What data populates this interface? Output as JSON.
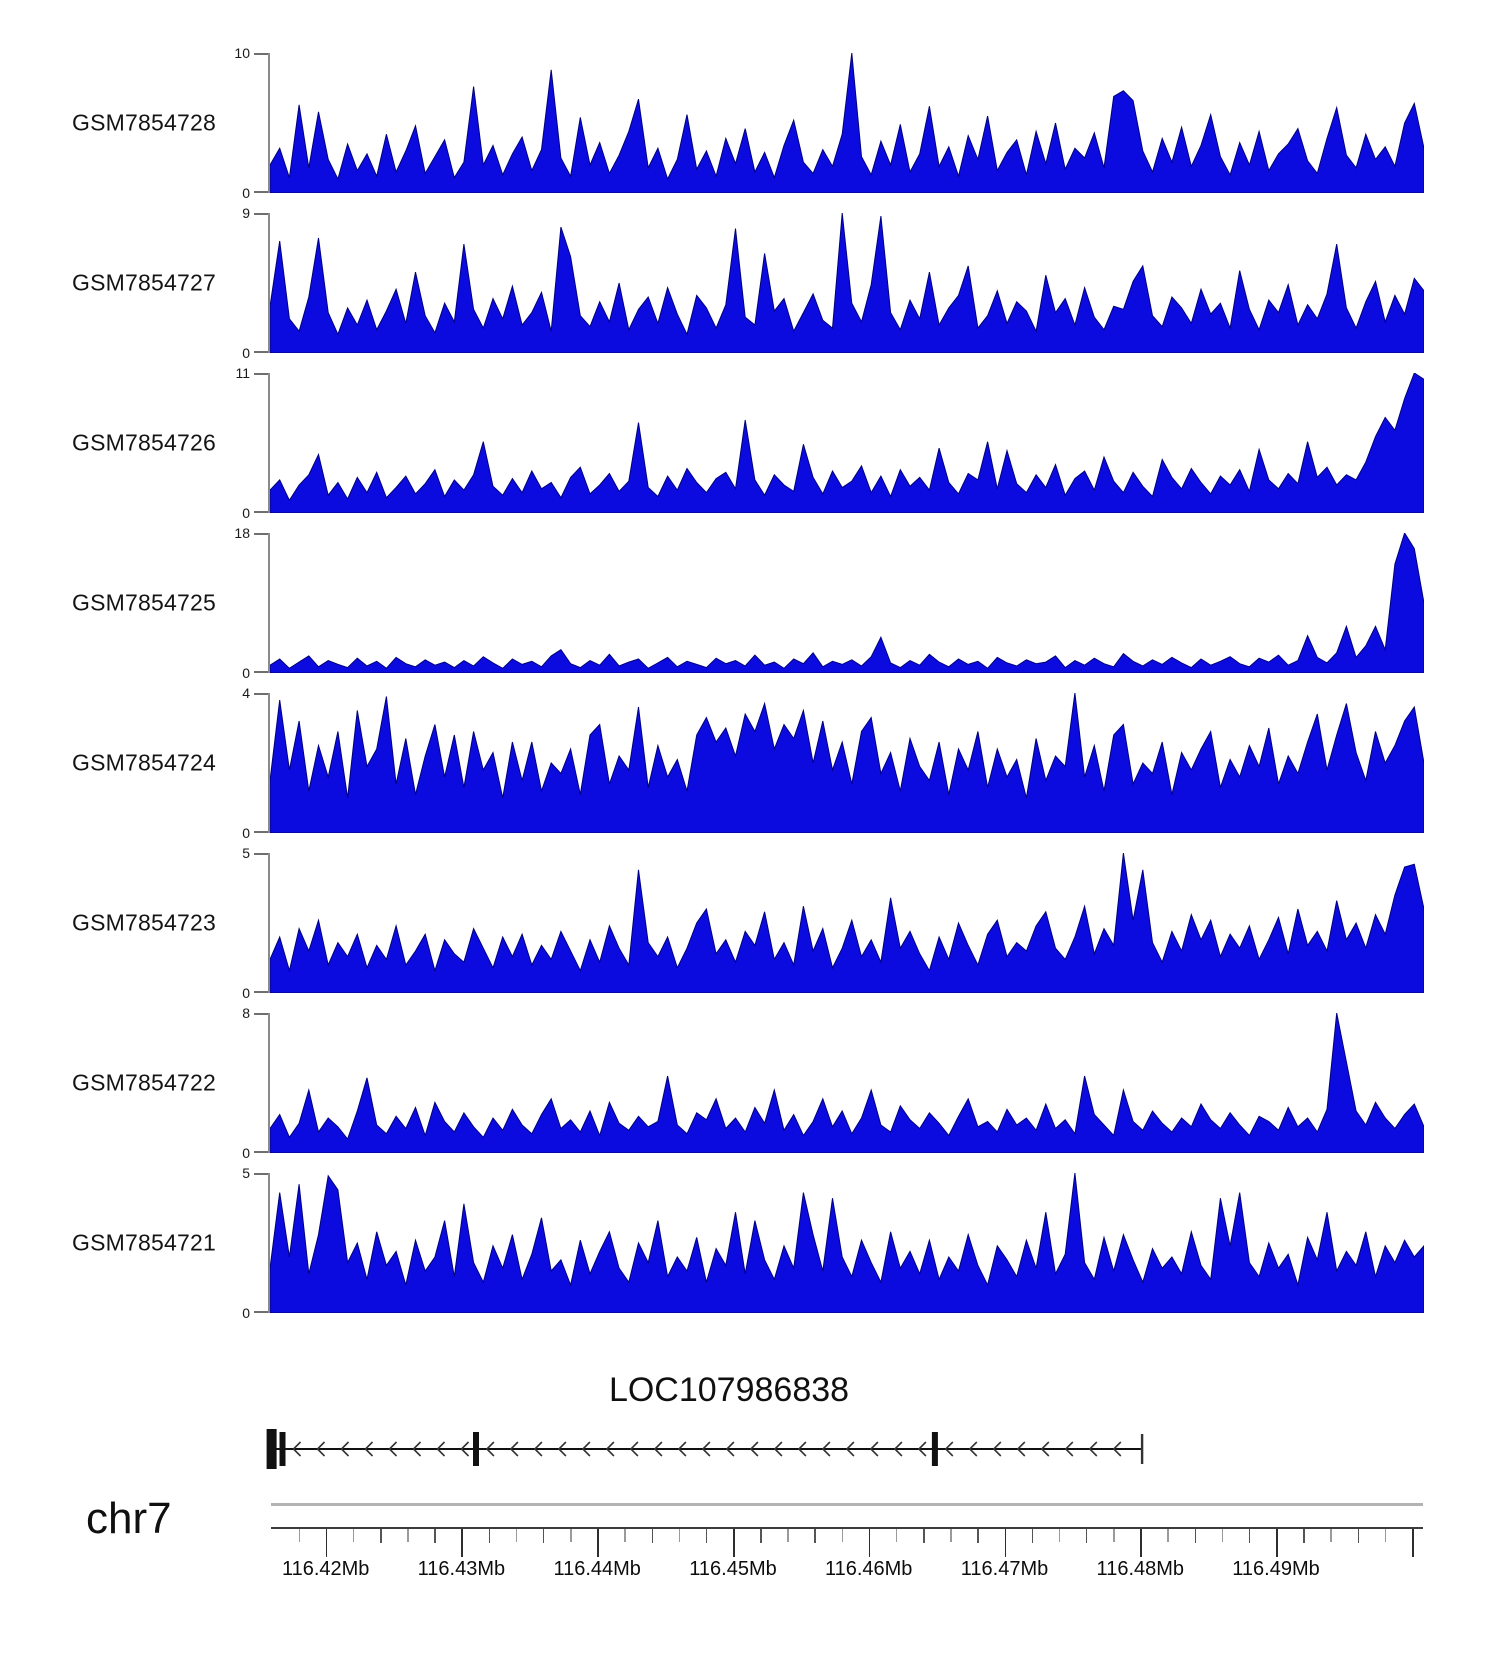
{
  "figure": {
    "kind": "genome-browser-coverage-figure",
    "background": "#ffffff"
  },
  "colors": {
    "signal_fill": "#0b0be0",
    "signal_stroke": "#00007d",
    "y_axis_line": "#8a8a8a",
    "genome_axis_line": "#3c3c3c",
    "ideogram_line": "#b3b3b3",
    "gene_model": "#111111",
    "text": "#101010"
  },
  "chart_data": {
    "type": "area",
    "title": "",
    "legend": "none",
    "grid": false,
    "genome_axis": {
      "chromosome_label": "chr7",
      "xlim_mb": [
        116.4159,
        116.5009
      ],
      "minor_tick_step_mb": 0.002,
      "major_tick_values_mb": [
        116.42,
        116.43,
        116.44,
        116.45,
        116.46,
        116.47,
        116.48,
        116.49
      ],
      "tick_labels": [
        "116.42Mb",
        "116.43Mb",
        "116.44Mb",
        "116.45Mb",
        "116.46Mb",
        "116.47Mb",
        "116.48Mb",
        "116.49Mb"
      ]
    },
    "x_sampling": {
      "x_start_mb": 116.4159,
      "x_step_mb": 0.000714,
      "points_per_track": 120
    },
    "tracks": [
      {
        "label": "GSM7854728",
        "ylim": [
          0,
          10
        ],
        "ymax_label": "10",
        "ymin_label": "0",
        "values": [
          2.0,
          3.2,
          1.1,
          6.3,
          1.8,
          5.8,
          2.4,
          1.0,
          3.5,
          1.6,
          2.8,
          1.2,
          4.2,
          1.5,
          3.0,
          4.8,
          1.4,
          2.6,
          3.8,
          1.1,
          2.2,
          7.6,
          2.0,
          3.4,
          1.3,
          2.8,
          4.0,
          1.6,
          3.1,
          8.8,
          2.5,
          1.2,
          5.4,
          2.0,
          3.6,
          1.4,
          2.7,
          4.4,
          6.7,
          1.8,
          3.2,
          1.0,
          2.4,
          5.6,
          1.7,
          3.0,
          1.2,
          3.9,
          2.1,
          4.6,
          1.5,
          2.9,
          1.1,
          3.4,
          5.2,
          2.2,
          1.4,
          3.1,
          1.9,
          4.2,
          10.0,
          2.6,
          1.3,
          3.7,
          2.0,
          4.9,
          1.5,
          2.8,
          6.2,
          1.9,
          3.3,
          1.2,
          4.1,
          2.4,
          5.5,
          1.6,
          2.9,
          3.8,
          1.3,
          4.4,
          2.1,
          5.0,
          1.7,
          3.2,
          2.5,
          4.3,
          1.8,
          6.9,
          7.3,
          6.6,
          3.0,
          1.5,
          3.9,
          2.2,
          4.7,
          1.9,
          3.4,
          5.6,
          2.6,
          1.3,
          3.6,
          2.0,
          4.4,
          1.6,
          2.8,
          3.5,
          4.6,
          2.3,
          1.4,
          3.9,
          6.1,
          2.7,
          1.8,
          4.2,
          2.4,
          3.3,
          1.9,
          5.0,
          6.4,
          3.2
        ]
      },
      {
        "label": "GSM7854727",
        "ylim": [
          0,
          9
        ],
        "ymax_label": "9",
        "ymin_label": "0",
        "values": [
          3.0,
          7.2,
          2.2,
          1.4,
          3.6,
          7.4,
          2.6,
          1.2,
          2.9,
          1.8,
          3.4,
          1.5,
          2.7,
          4.1,
          1.9,
          5.2,
          2.4,
          1.3,
          3.2,
          2.0,
          7.0,
          2.8,
          1.6,
          3.5,
          2.2,
          4.3,
          1.8,
          2.6,
          3.9,
          1.4,
          8.1,
          6.2,
          2.4,
          1.7,
          3.3,
          2.0,
          4.5,
          1.5,
          2.8,
          3.6,
          1.9,
          4.2,
          2.5,
          1.2,
          3.7,
          2.9,
          1.6,
          3.1,
          8.0,
          2.3,
          1.8,
          6.4,
          2.7,
          3.5,
          1.4,
          2.6,
          3.8,
          2.1,
          1.6,
          9.0,
          3.2,
          2.0,
          4.4,
          8.8,
          2.6,
          1.5,
          3.4,
          2.2,
          5.2,
          1.8,
          2.9,
          3.7,
          5.6,
          1.6,
          2.4,
          4.0,
          1.9,
          3.3,
          2.7,
          1.4,
          5.0,
          2.6,
          3.5,
          1.8,
          4.2,
          2.3,
          1.5,
          3.0,
          2.8,
          4.6,
          5.6,
          2.4,
          1.7,
          3.6,
          2.9,
          1.9,
          4.1,
          2.5,
          3.2,
          1.6,
          5.3,
          2.8,
          1.5,
          3.4,
          2.6,
          4.4,
          1.8,
          3.1,
          2.2,
          3.8,
          7.0,
          2.9,
          1.6,
          3.3,
          4.6,
          2.0,
          3.7,
          2.5,
          4.8,
          4.0
        ]
      },
      {
        "label": "GSM7854726",
        "ylim": [
          0,
          11
        ],
        "ymax_label": "11",
        "ymin_label": "0",
        "values": [
          1.8,
          2.6,
          1.0,
          2.2,
          3.0,
          4.6,
          1.4,
          2.4,
          1.1,
          2.8,
          1.6,
          3.2,
          1.2,
          2.0,
          2.9,
          1.5,
          2.3,
          3.4,
          1.3,
          2.6,
          1.8,
          3.0,
          5.6,
          2.1,
          1.4,
          2.7,
          1.6,
          3.3,
          1.9,
          2.4,
          1.2,
          2.8,
          3.6,
          1.5,
          2.2,
          3.1,
          1.7,
          2.5,
          7.1,
          2.0,
          1.3,
          2.9,
          1.8,
          3.5,
          2.4,
          1.6,
          2.7,
          3.2,
          1.9,
          7.3,
          2.6,
          1.4,
          3.0,
          2.2,
          1.7,
          5.4,
          2.8,
          1.5,
          3.3,
          2.0,
          2.5,
          3.7,
          1.6,
          2.9,
          1.3,
          3.4,
          2.1,
          2.8,
          1.8,
          5.1,
          2.4,
          1.5,
          3.1,
          2.6,
          5.6,
          1.9,
          4.9,
          2.3,
          1.6,
          3.0,
          2.0,
          3.8,
          1.4,
          2.7,
          3.3,
          1.8,
          4.4,
          2.5,
          1.6,
          3.2,
          2.1,
          1.3,
          4.2,
          2.8,
          1.9,
          3.5,
          2.4,
          1.5,
          2.9,
          2.2,
          3.4,
          1.7,
          5.0,
          2.6,
          1.9,
          3.1,
          2.3,
          5.6,
          2.8,
          3.6,
          2.2,
          3.0,
          2.6,
          4.0,
          6.0,
          7.5,
          6.5,
          9.0,
          11.0,
          10.5
        ]
      },
      {
        "label": "GSM7854725",
        "ylim": [
          0,
          18
        ],
        "ymax_label": "18",
        "ymin_label": "0",
        "values": [
          1.0,
          1.8,
          0.6,
          1.4,
          2.2,
          0.8,
          1.6,
          1.1,
          0.7,
          1.9,
          0.9,
          1.5,
          0.6,
          2.0,
          1.2,
          0.8,
          1.7,
          1.0,
          1.4,
          0.7,
          1.6,
          0.9,
          2.1,
          1.3,
          0.6,
          1.8,
          1.1,
          1.5,
          0.8,
          2.2,
          3.0,
          1.2,
          0.7,
          1.6,
          1.0,
          2.4,
          0.9,
          1.4,
          1.8,
          0.6,
          1.3,
          2.0,
          0.8,
          1.5,
          1.1,
          0.7,
          1.9,
          1.2,
          1.6,
          0.9,
          2.3,
          1.0,
          1.4,
          0.6,
          1.8,
          1.2,
          2.6,
          0.8,
          1.5,
          1.1,
          1.7,
          0.9,
          2.1,
          4.6,
          1.3,
          0.7,
          1.6,
          1.0,
          2.4,
          1.4,
          0.8,
          1.8,
          1.1,
          1.5,
          0.6,
          2.0,
          1.3,
          0.9,
          1.7,
          1.2,
          1.4,
          2.2,
          0.7,
          1.6,
          1.0,
          1.9,
          1.2,
          0.8,
          2.5,
          1.5,
          0.9,
          1.7,
          1.1,
          2.0,
          1.3,
          0.7,
          1.8,
          1.0,
          1.5,
          2.1,
          1.2,
          0.8,
          1.9,
          1.4,
          2.3,
          1.0,
          1.6,
          4.8,
          2.0,
          1.3,
          2.6,
          6.0,
          2.0,
          3.5,
          6.0,
          3.0,
          14.0,
          18.0,
          16.0,
          9.0
        ]
      },
      {
        "label": "GSM7854724",
        "ylim": [
          0,
          4
        ],
        "ymax_label": "4",
        "ymin_label": "0",
        "values": [
          1.5,
          3.8,
          1.8,
          3.2,
          1.2,
          2.5,
          1.6,
          2.9,
          1.0,
          3.5,
          1.9,
          2.4,
          3.9,
          1.4,
          2.7,
          1.1,
          2.2,
          3.1,
          1.6,
          2.8,
          1.3,
          2.9,
          1.8,
          2.3,
          1.0,
          2.6,
          1.5,
          2.6,
          1.2,
          2.0,
          1.7,
          2.4,
          1.1,
          2.8,
          3.1,
          1.4,
          2.2,
          1.8,
          3.6,
          1.3,
          2.5,
          1.6,
          2.1,
          1.2,
          2.8,
          3.3,
          2.6,
          3.0,
          2.2,
          3.4,
          2.9,
          3.7,
          2.4,
          3.1,
          2.7,
          3.5,
          2.0,
          3.2,
          1.8,
          2.6,
          1.4,
          2.9,
          3.3,
          1.7,
          2.3,
          1.2,
          2.7,
          1.9,
          1.5,
          2.6,
          1.1,
          2.4,
          1.8,
          2.9,
          1.3,
          2.4,
          1.6,
          2.1,
          1.0,
          2.7,
          1.5,
          2.2,
          1.9,
          4.0,
          1.6,
          2.5,
          1.2,
          2.8,
          3.1,
          1.4,
          2.0,
          1.7,
          2.6,
          1.1,
          2.3,
          1.8,
          2.4,
          2.9,
          1.3,
          2.1,
          1.6,
          2.5,
          1.9,
          3.0,
          1.4,
          2.2,
          1.7,
          2.6,
          3.4,
          1.8,
          2.8,
          3.7,
          2.3,
          1.5,
          2.9,
          2.0,
          2.5,
          3.2,
          3.6,
          2.0
        ]
      },
      {
        "label": "GSM7854723",
        "ylim": [
          0,
          5
        ],
        "ymax_label": "5",
        "ymin_label": "0",
        "values": [
          1.2,
          2.0,
          0.8,
          2.3,
          1.5,
          2.6,
          1.0,
          1.8,
          1.3,
          2.1,
          0.9,
          1.7,
          1.2,
          2.4,
          1.0,
          1.5,
          2.1,
          0.8,
          1.9,
          1.4,
          1.1,
          2.3,
          1.6,
          0.9,
          2.0,
          1.3,
          2.1,
          1.0,
          1.7,
          1.2,
          2.2,
          1.5,
          0.8,
          1.9,
          1.1,
          2.4,
          1.6,
          1.0,
          4.4,
          1.8,
          1.3,
          2.0,
          0.9,
          1.6,
          2.5,
          3.0,
          1.4,
          1.9,
          1.1,
          2.2,
          1.7,
          2.9,
          1.2,
          1.8,
          1.0,
          3.1,
          1.5,
          2.3,
          0.9,
          1.6,
          2.6,
          1.3,
          1.9,
          1.1,
          3.4,
          1.6,
          2.2,
          1.4,
          0.8,
          2.0,
          1.2,
          2.5,
          1.7,
          1.0,
          2.1,
          2.6,
          1.3,
          1.8,
          1.5,
          2.4,
          2.9,
          1.6,
          1.2,
          2.0,
          3.1,
          1.4,
          2.3,
          1.7,
          5.0,
          2.6,
          4.4,
          1.8,
          1.1,
          2.2,
          1.5,
          2.8,
          1.9,
          2.6,
          1.3,
          2.1,
          1.6,
          2.4,
          1.2,
          1.9,
          2.7,
          1.4,
          3.0,
          1.7,
          2.2,
          1.5,
          3.3,
          1.9,
          2.5,
          1.6,
          2.8,
          2.1,
          3.5,
          4.5,
          4.6,
          3.0
        ]
      },
      {
        "label": "GSM7854722",
        "ylim": [
          0,
          8
        ],
        "ymax_label": "8",
        "ymin_label": "0",
        "values": [
          1.4,
          2.2,
          0.9,
          1.7,
          3.6,
          1.2,
          2.0,
          1.5,
          0.8,
          2.4,
          4.3,
          1.6,
          1.1,
          2.1,
          1.4,
          2.6,
          1.0,
          2.9,
          1.8,
          1.2,
          2.3,
          1.5,
          0.9,
          2.0,
          1.3,
          2.5,
          1.6,
          1.1,
          2.2,
          3.1,
          1.4,
          1.9,
          1.2,
          2.4,
          1.0,
          2.9,
          1.7,
          1.3,
          2.1,
          1.5,
          1.8,
          4.4,
          1.6,
          1.1,
          2.3,
          1.9,
          3.1,
          1.4,
          2.0,
          1.2,
          2.6,
          1.7,
          3.6,
          1.3,
          2.2,
          1.0,
          1.8,
          3.1,
          1.5,
          2.4,
          1.1,
          2.0,
          3.6,
          1.6,
          1.2,
          2.7,
          1.9,
          1.4,
          2.3,
          1.7,
          1.0,
          2.1,
          3.1,
          1.5,
          1.8,
          1.2,
          2.5,
          1.6,
          2.0,
          1.3,
          2.8,
          1.4,
          1.9,
          1.1,
          4.4,
          2.2,
          1.6,
          1.0,
          3.6,
          1.8,
          1.3,
          2.4,
          1.7,
          1.2,
          2.0,
          1.5,
          2.8,
          1.9,
          1.4,
          2.3,
          1.6,
          1.0,
          2.1,
          1.8,
          1.3,
          2.6,
          1.5,
          2.0,
          1.2,
          2.5,
          8.0,
          5.2,
          2.4,
          1.6,
          2.9,
          2.0,
          1.4,
          2.2,
          2.8,
          1.5
        ]
      },
      {
        "label": "GSM7854721",
        "ylim": [
          0,
          5
        ],
        "ymax_label": "5",
        "ymin_label": "0",
        "values": [
          1.6,
          4.3,
          2.0,
          4.6,
          1.4,
          2.8,
          4.9,
          4.4,
          1.8,
          2.5,
          1.2,
          2.9,
          1.7,
          2.2,
          1.0,
          2.6,
          1.5,
          2.0,
          3.3,
          1.3,
          3.9,
          1.8,
          1.1,
          2.4,
          1.6,
          2.8,
          1.2,
          2.1,
          3.4,
          1.5,
          1.9,
          1.0,
          2.6,
          1.4,
          2.2,
          2.9,
          1.6,
          1.1,
          2.5,
          1.8,
          3.3,
          1.3,
          2.0,
          1.5,
          2.7,
          1.1,
          2.3,
          1.7,
          3.6,
          1.4,
          3.3,
          1.9,
          1.2,
          2.4,
          1.6,
          4.3,
          2.8,
          1.5,
          4.1,
          2.0,
          1.3,
          2.6,
          1.8,
          1.1,
          2.9,
          1.6,
          2.2,
          1.4,
          2.6,
          1.2,
          2.0,
          1.5,
          2.8,
          1.7,
          1.0,
          2.4,
          1.9,
          1.3,
          2.6,
          1.6,
          3.6,
          1.4,
          2.1,
          5.0,
          1.8,
          1.2,
          2.7,
          1.5,
          2.8,
          1.9,
          1.1,
          2.3,
          1.6,
          2.0,
          1.4,
          2.9,
          1.7,
          1.2,
          4.1,
          2.4,
          4.3,
          1.8,
          1.3,
          2.5,
          1.6,
          2.1,
          1.0,
          2.7,
          1.9,
          3.6,
          1.5,
          2.2,
          1.7,
          2.9,
          1.3,
          2.4,
          1.8,
          2.6,
          2.0,
          2.4
        ]
      }
    ],
    "gene_track": {
      "name": "LOC107986838",
      "strand": "-",
      "arrow_direction": "left",
      "span_mb": [
        116.41565,
        116.48005
      ],
      "exon_boxes_mb": [
        {
          "start_mb": 116.41565,
          "width_mb": 0.00074,
          "tall": true
        },
        {
          "start_mb": 116.4166,
          "width_mb": 0.00044,
          "tall": false
        },
        {
          "start_mb": 116.43085,
          "width_mb": 0.00044,
          "tall": false
        },
        {
          "start_mb": 116.46465,
          "width_mb": 0.00044,
          "tall": false
        }
      ],
      "transcript_end_mb": 116.48005
    }
  }
}
